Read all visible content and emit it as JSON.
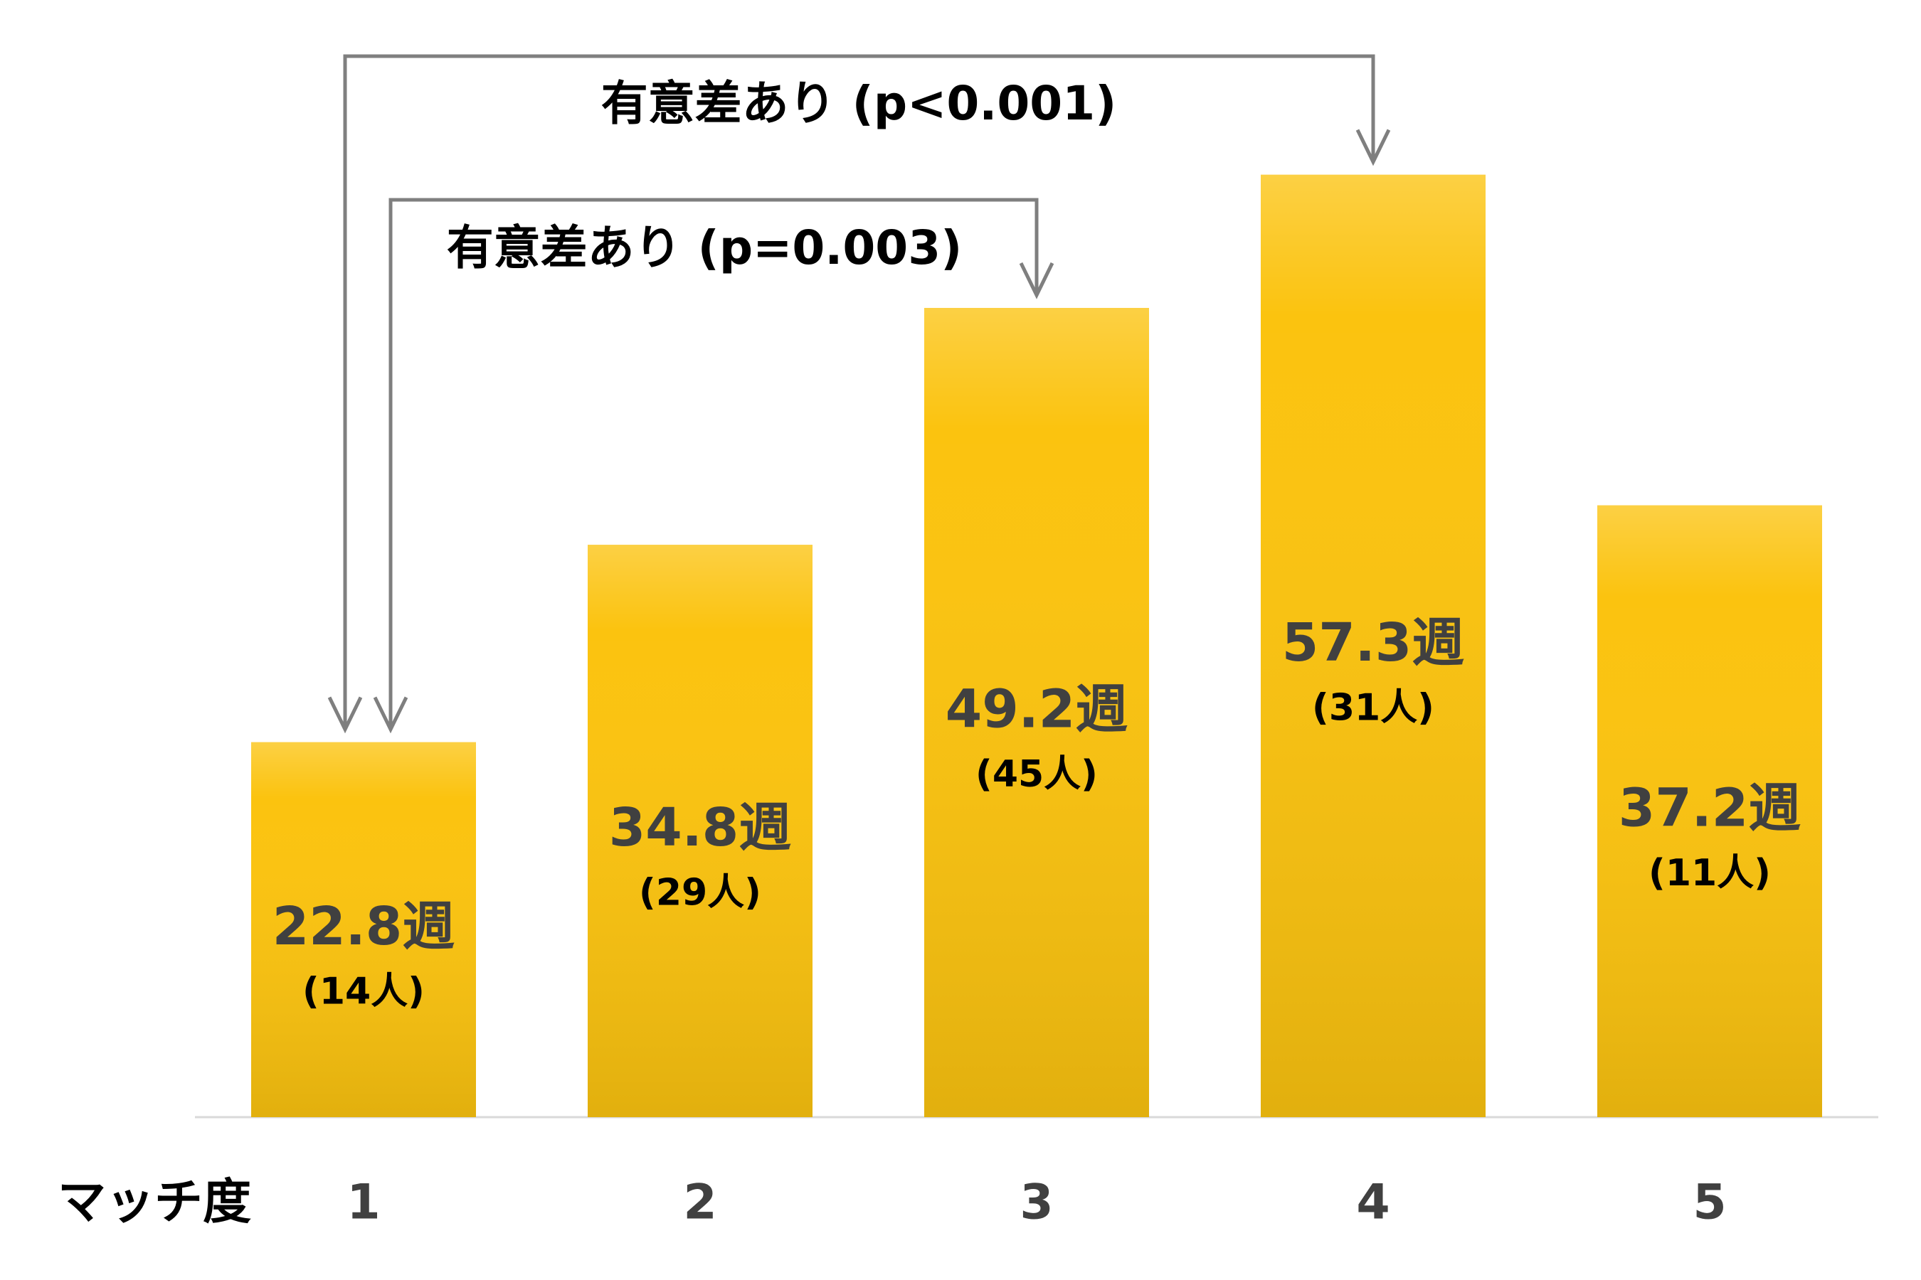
{
  "chart_data": {
    "type": "bar",
    "x_label": "マッチ度",
    "categories": [
      "1",
      "2",
      "3",
      "4",
      "5"
    ],
    "values": [
      22.8,
      34.8,
      49.2,
      57.3,
      37.2
    ],
    "value_labels": [
      "22.8週",
      "34.8週",
      "49.2週",
      "57.3週",
      "37.2週"
    ],
    "sample_labels": [
      "(14人)",
      "(29人)",
      "(45人)",
      "(31人)",
      "(11人)"
    ],
    "color": "#fbc30f",
    "annotations": [
      {
        "text": "有意差あり (p<0.001)",
        "from": "1",
        "to": "4"
      },
      {
        "text": "有意差あり (p=0.003)",
        "from": "1",
        "to": "3"
      }
    ]
  }
}
